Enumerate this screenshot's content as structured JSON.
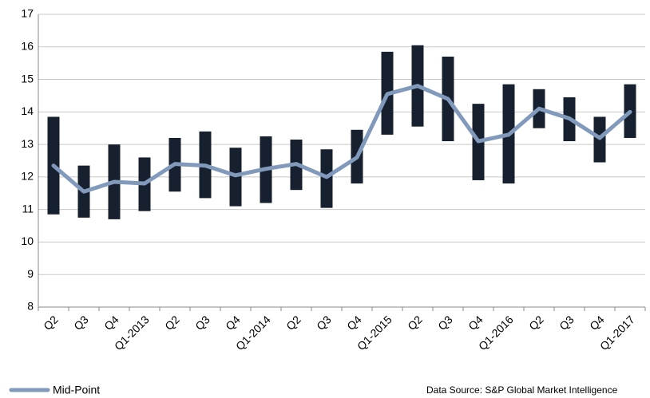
{
  "chart_data": {
    "type": "range-bar-line",
    "categories": [
      "Q2",
      "Q3",
      "Q4",
      "Q1-2013",
      "Q2",
      "Q3",
      "Q4",
      "Q1-2014",
      "Q2",
      "Q3",
      "Q4",
      "Q1-2015",
      "Q2",
      "Q3",
      "Q4",
      "Q1-2016",
      "Q2",
      "Q3",
      "Q4",
      "Q1-2017"
    ],
    "ranges": {
      "color": "#17202e",
      "low": [
        10.85,
        10.75,
        10.7,
        10.95,
        11.55,
        11.35,
        11.1,
        11.2,
        11.6,
        11.05,
        11.8,
        13.3,
        13.55,
        13.1,
        11.9,
        11.8,
        13.5,
        13.1,
        12.45,
        13.2
      ],
      "high": [
        13.85,
        12.35,
        13.0,
        12.6,
        13.2,
        13.4,
        12.9,
        13.25,
        13.15,
        12.85,
        13.45,
        15.85,
        16.05,
        15.7,
        14.25,
        14.85,
        14.7,
        14.45,
        13.85,
        14.85
      ]
    },
    "series": [
      {
        "name": "Mid-Point",
        "color": "#8199bb",
        "values": [
          12.35,
          11.55,
          11.85,
          11.8,
          12.4,
          12.35,
          12.05,
          12.25,
          12.4,
          12.0,
          12.6,
          14.55,
          14.8,
          14.4,
          13.1,
          13.3,
          14.1,
          13.8,
          13.2,
          14.0
        ]
      }
    ],
    "ylim": [
      8,
      17
    ],
    "yticks": [
      8,
      9,
      10,
      11,
      12,
      13,
      14,
      15,
      16,
      17
    ],
    "grid": true,
    "legend": "bottom-left",
    "source": "Data Source: S&P Global Market Intelligence"
  }
}
